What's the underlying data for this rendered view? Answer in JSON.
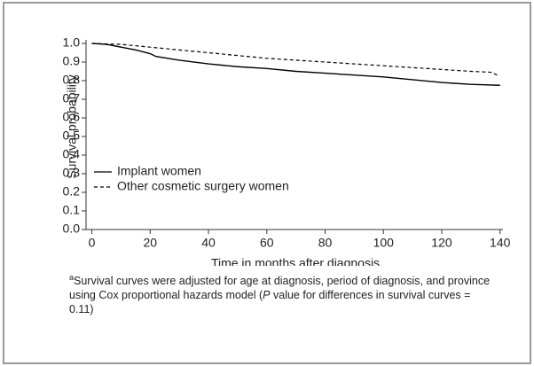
{
  "chart_data": {
    "type": "line",
    "xlabel": "Time in months after diagnosis",
    "ylabel": "Survival probability",
    "series": [
      {
        "name": "Implant  women",
        "color": "#000000",
        "dashed": false,
        "x": [
          0,
          5,
          10,
          15,
          20,
          22,
          30,
          40,
          50,
          60,
          70,
          80,
          90,
          100,
          110,
          120,
          130,
          140
        ],
        "values": [
          1.0,
          0.995,
          0.98,
          0.965,
          0.945,
          0.93,
          0.91,
          0.89,
          0.875,
          0.865,
          0.85,
          0.84,
          0.83,
          0.82,
          0.805,
          0.79,
          0.78,
          0.775
        ]
      },
      {
        "name": "Other cosmetic surgery women",
        "color": "#000000",
        "dashed": true,
        "x": [
          0,
          10,
          20,
          30,
          40,
          50,
          60,
          70,
          80,
          90,
          100,
          110,
          120,
          130,
          137,
          139
        ],
        "values": [
          1.0,
          0.995,
          0.98,
          0.965,
          0.95,
          0.935,
          0.92,
          0.91,
          0.9,
          0.89,
          0.88,
          0.87,
          0.86,
          0.85,
          0.845,
          0.83
        ]
      }
    ],
    "xlim": [
      -2,
      141
    ],
    "ylim": [
      0,
      1
    ],
    "xticks": [
      0,
      20,
      40,
      60,
      80,
      100,
      120,
      140
    ],
    "yticks": [
      {
        "value": 0,
        "label": "0.0"
      },
      0.1,
      0.2,
      0.3,
      0.4,
      0.5,
      0.6,
      0.7,
      0.8,
      0.9,
      {
        "value": 1,
        "label": "1.0"
      }
    ],
    "legend": "lower left",
    "footnote": {
      "marker": "a",
      "before": "Survival curves were adjusted for age at diagnosis, period of diagnosis, and province using Cox proportional hazards model (",
      "italic": "P",
      "after": " value for differences in survival curves = 0.11)"
    }
  }
}
